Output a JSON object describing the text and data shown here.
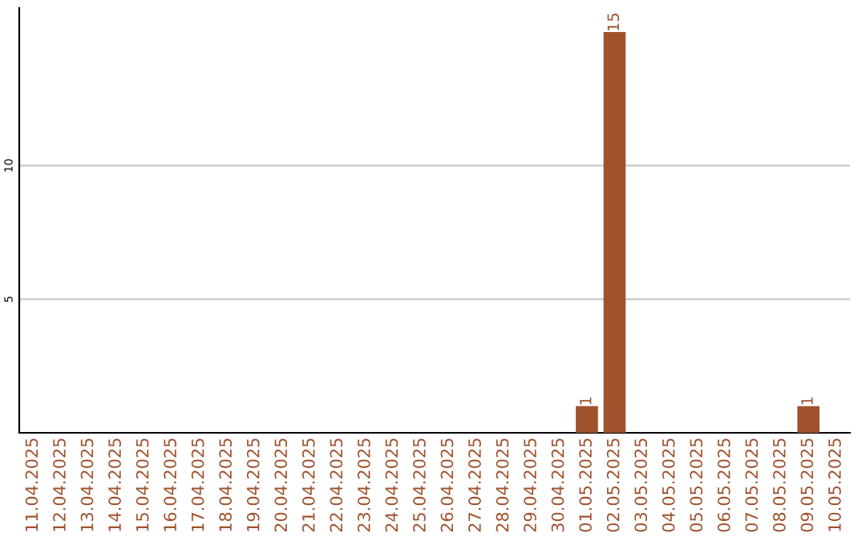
{
  "chart_data": {
    "type": "bar",
    "categories": [
      "11.04.2025",
      "12.04.2025",
      "13.04.2025",
      "14.04.2025",
      "15.04.2025",
      "16.04.2025",
      "17.04.2025",
      "18.04.2025",
      "19.04.2025",
      "20.04.2025",
      "21.04.2025",
      "22.04.2025",
      "23.04.2025",
      "24.04.2025",
      "25.04.2025",
      "26.04.2025",
      "27.04.2025",
      "28.04.2025",
      "29.04.2025",
      "30.04.2025",
      "01.05.2025",
      "02.05.2025",
      "03.05.2025",
      "04.05.2025",
      "05.05.2025",
      "06.05.2025",
      "07.05.2025",
      "08.05.2025",
      "09.05.2025",
      "10.05.2025"
    ],
    "values": [
      0,
      0,
      0,
      0,
      0,
      0,
      0,
      0,
      0,
      0,
      0,
      0,
      0,
      0,
      0,
      0,
      0,
      0,
      0,
      0,
      1,
      15,
      0,
      0,
      0,
      0,
      0,
      0,
      1,
      0
    ],
    "value_labels": [
      null,
      null,
      null,
      null,
      null,
      null,
      null,
      null,
      null,
      null,
      null,
      null,
      null,
      null,
      null,
      null,
      null,
      null,
      null,
      null,
      "1",
      "15",
      null,
      null,
      null,
      null,
      null,
      null,
      "1",
      null
    ],
    "color": "#a0522d",
    "ylim": [
      0,
      15.9
    ],
    "yticks": [
      5,
      10
    ],
    "grid": "y"
  }
}
